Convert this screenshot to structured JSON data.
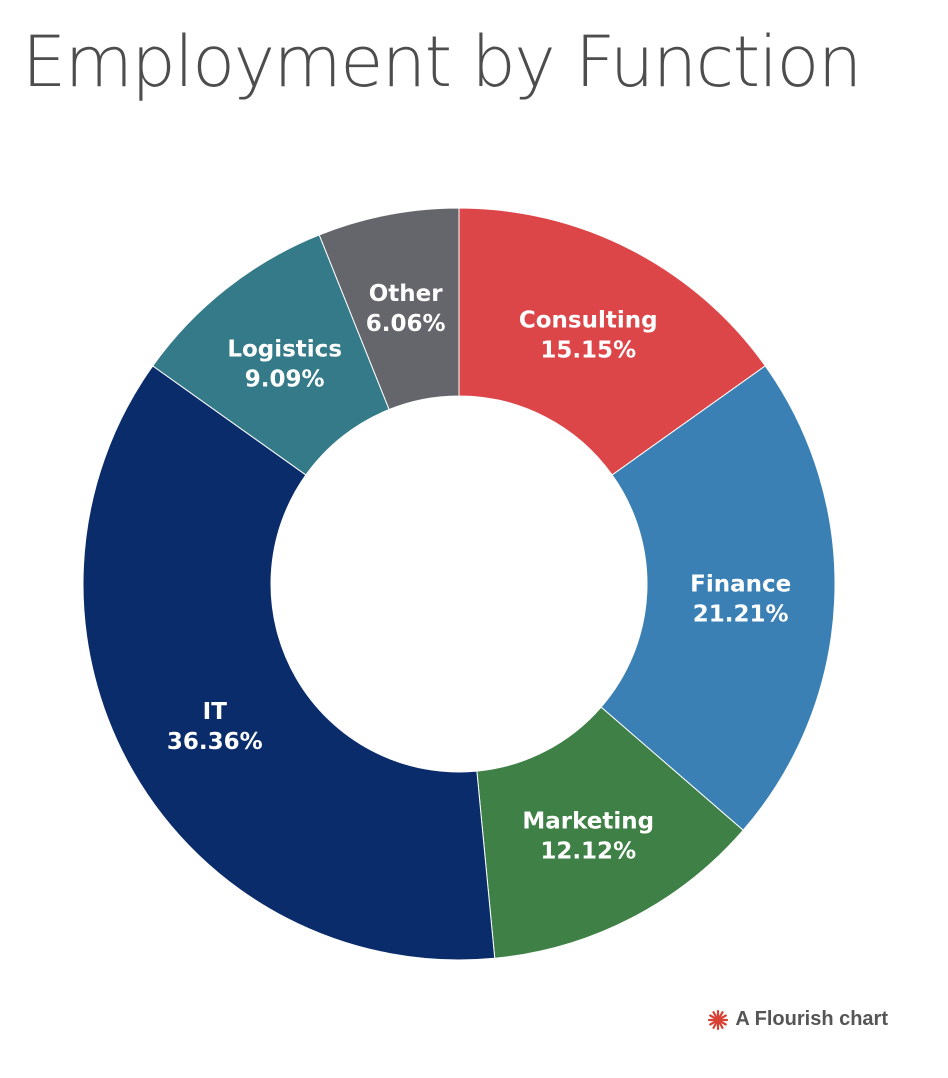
{
  "title": "Employment by Function",
  "credit": {
    "label": "A Flourish chart",
    "icon": "flourish-logo-icon",
    "icon_color": "#d84235"
  },
  "chart_data": {
    "type": "pie",
    "donut": true,
    "title": "Employment by Function",
    "slices": [
      {
        "label": "Consulting",
        "value": 15.15,
        "value_label": "15.15%",
        "color": "#dc4649"
      },
      {
        "label": "Finance",
        "value": 21.21,
        "value_label": "21.21%",
        "color": "#3a80b4"
      },
      {
        "label": "Marketing",
        "value": 12.12,
        "value_label": "12.12%",
        "color": "#3e8045"
      },
      {
        "label": "IT",
        "value": 36.36,
        "value_label": "36.36%",
        "color": "#0b2c6b"
      },
      {
        "label": "Logistics",
        "value": 9.09,
        "value_label": "9.09%",
        "color": "#347a89"
      },
      {
        "label": "Other",
        "value": 6.06,
        "value_label": "6.06%",
        "color": "#64666b"
      }
    ]
  }
}
